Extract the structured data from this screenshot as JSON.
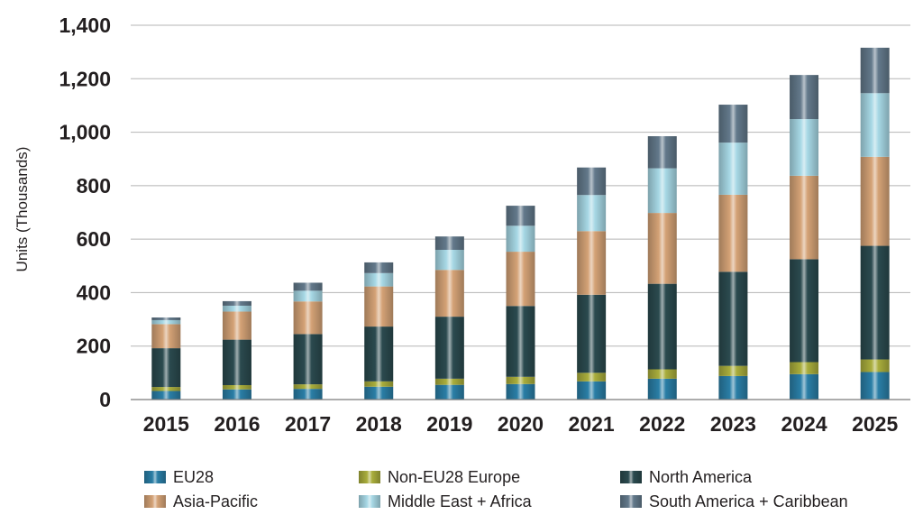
{
  "chart_data": {
    "type": "bar",
    "stacked": true,
    "title": "",
    "xlabel": "",
    "ylabel": "Units (Thousands)",
    "ylim": [
      0,
      1400
    ],
    "yticks": [
      0,
      200,
      400,
      600,
      800,
      1000,
      1200,
      1400
    ],
    "ytick_labels": [
      "0",
      "200",
      "400",
      "600",
      "800",
      "1,000",
      "1,200",
      "1,400"
    ],
    "grid": "horizontal",
    "legend_position": "bottom",
    "categories": [
      "2015",
      "2016",
      "2017",
      "2018",
      "2019",
      "2020",
      "2021",
      "2022",
      "2023",
      "2024",
      "2025"
    ],
    "series": [
      {
        "name": "EU28",
        "color": "#2a7ea6",
        "values": [
          32,
          38,
          40,
          48,
          55,
          58,
          68,
          78,
          88,
          95,
          103
        ]
      },
      {
        "name": "Non-EU28 Europe",
        "color": "#a9ad3c",
        "values": [
          15,
          16,
          17,
          20,
          23,
          27,
          32,
          35,
          38,
          45,
          47
        ]
      },
      {
        "name": "North America",
        "color": "#2b4a4f",
        "values": [
          145,
          170,
          188,
          205,
          232,
          265,
          292,
          320,
          352,
          385,
          425
        ]
      },
      {
        "name": "Asia-Pacific",
        "color": "#d4a276",
        "values": [
          90,
          105,
          122,
          150,
          175,
          203,
          238,
          265,
          288,
          312,
          333
        ]
      },
      {
        "name": "Middle East + Africa",
        "color": "#a7d8e5",
        "values": [
          15,
          22,
          40,
          50,
          75,
          97,
          135,
          167,
          195,
          212,
          238
        ]
      },
      {
        "name": "South America + Caribbean",
        "color": "#63798b",
        "values": [
          10,
          17,
          30,
          40,
          50,
          75,
          103,
          120,
          142,
          165,
          170
        ]
      }
    ]
  }
}
